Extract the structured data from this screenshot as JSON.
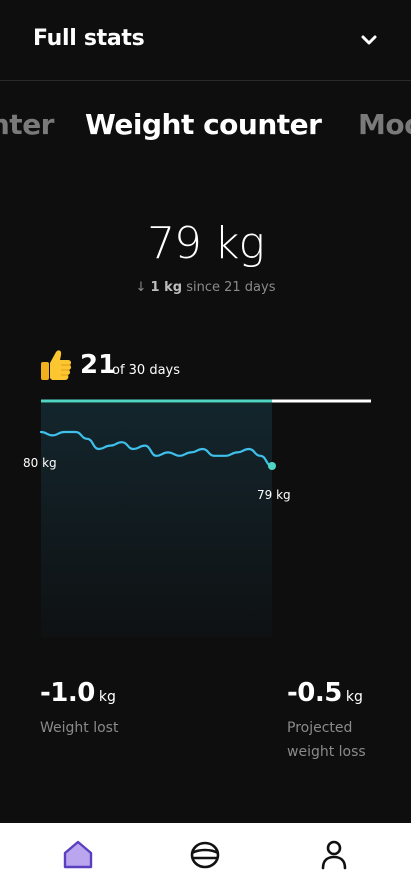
{
  "header": {
    "title": "Full stats",
    "toggle_icon": "chevron-down-icon"
  },
  "tabs": {
    "prev": "nter",
    "active": "Weight counter",
    "next": "Moo"
  },
  "summary": {
    "current_weight": "79 kg",
    "change_arrow": "↓",
    "change_amount": "1 kg",
    "change_suffix": "since 21 days"
  },
  "progress": {
    "days_done": "21",
    "days_total_label": "of 30 days",
    "fraction": 0.7,
    "icon": "thumbs-up-icon"
  },
  "chart_data": {
    "type": "line",
    "start_label": "80 kg",
    "end_label": "79 kg",
    "days": 21,
    "values": [
      80.0,
      79.9,
      80.0,
      80.0,
      79.8,
      79.5,
      79.6,
      79.7,
      79.5,
      79.6,
      79.3,
      79.4,
      79.3,
      79.4,
      79.5,
      79.3,
      79.3,
      79.4,
      79.5,
      79.3,
      79.0
    ],
    "colors": {
      "line": "#3ec0ea",
      "fill_start": "#2ea2c8",
      "bar": "#4fd6c3",
      "bar_track": "#ffffff"
    }
  },
  "stats": {
    "lost": {
      "value": "-1.0",
      "unit": "kg",
      "label": "Weight lost"
    },
    "projected": {
      "value": "-0.5",
      "unit": "kg",
      "label": "Projected weight loss"
    }
  },
  "nav": [
    {
      "name": "home-icon",
      "active": true
    },
    {
      "name": "bowl-icon",
      "active": false
    },
    {
      "name": "profile-icon",
      "active": false
    }
  ],
  "accent": "#b9a6ee"
}
